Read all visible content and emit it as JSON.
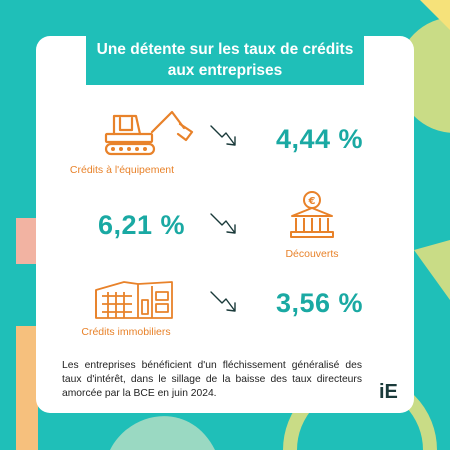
{
  "title": "Une détente sur les taux de crédits aux entreprises",
  "items": [
    {
      "label": "Crédits à l'équipement",
      "value": "4,44 %",
      "icon": "excavator-icon",
      "trend": "down"
    },
    {
      "label": "Découverts",
      "value": "6,21 %",
      "icon": "bank-euro-icon",
      "trend": "down"
    },
    {
      "label": "Crédits immobiliers",
      "value": "3,56 %",
      "icon": "building-icon",
      "trend": "down"
    }
  ],
  "description": "Les entreprises bénéficient d'un fléchissement généralisé des taux d'intérêt, dans le sillage de la baisse des taux directeurs amorcée par la BCE en juin 2024.",
  "logo": "iE",
  "colors": {
    "background": "#1fbfb8",
    "accent_orange": "#e8822a",
    "accent_teal": "#1aa9a3",
    "shape_green": "#c9dc86",
    "shape_pink": "#f2b3a2"
  }
}
